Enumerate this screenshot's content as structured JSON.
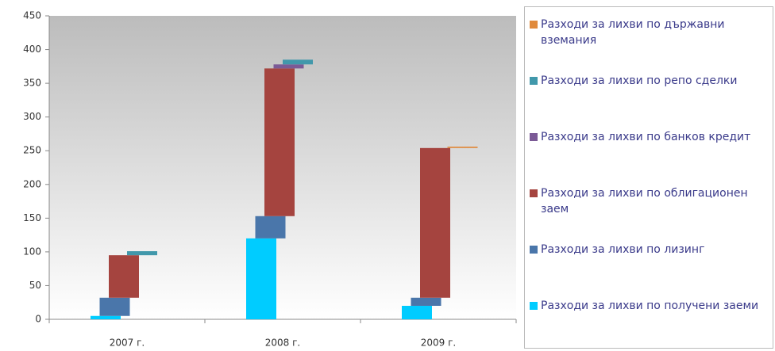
{
  "chart_data": {
    "type": "bar",
    "stacked": true,
    "categories": [
      "2007 г.",
      "2008 г.",
      "2009 г."
    ],
    "series": [
      {
        "name": "Разходи за лихви по получени заеми",
        "color": "#00ccff",
        "values": [
          5,
          120,
          20
        ]
      },
      {
        "name": "Разходи за лихви по лизинг",
        "color": "#4a76aa",
        "values": [
          27,
          33,
          12
        ]
      },
      {
        "name": "Разходи за лихви по облигационен заем",
        "color": "#a5443f",
        "values": [
          63,
          219,
          222
        ]
      },
      {
        "name": "Разходи за лихви по банков кредит",
        "color": "#7b5a96",
        "values": [
          0,
          6,
          0
        ]
      },
      {
        "name": "Разходи за лихви по репо сделки",
        "color": "#4198ab",
        "values": [
          6,
          7,
          0
        ]
      },
      {
        "name": "Разходи за лихви по държавни вземания",
        "color": "#e08a3c",
        "values": [
          0,
          0,
          2
        ]
      }
    ],
    "ylim": [
      0,
      450
    ],
    "yticks": [
      0,
      50,
      100,
      150,
      200,
      250,
      300,
      350,
      400,
      450
    ],
    "grid": false
  }
}
